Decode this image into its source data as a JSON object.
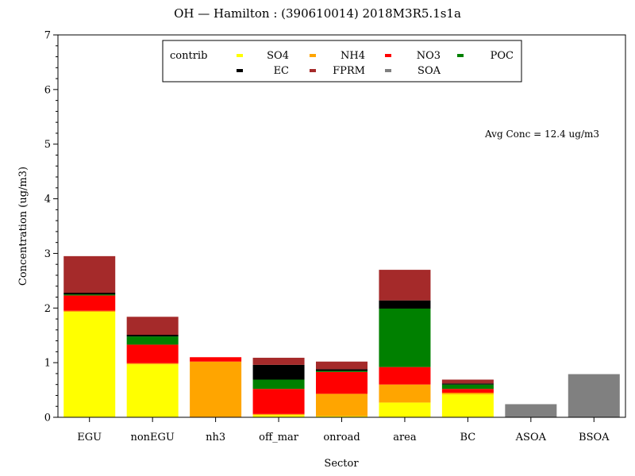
{
  "chart_data": {
    "type": "bar",
    "stacked": true,
    "title": "OH  —  Hamilton : (390610014)  2018M3R5.1s1a",
    "xlabel": "Sector",
    "ylabel": "Concentration (ug/m3)",
    "ylim": [
      0,
      7
    ],
    "yticks": [
      0,
      1,
      2,
      3,
      4,
      5,
      6,
      7
    ],
    "grid": false,
    "legend": {
      "title": "contrib",
      "placement": "top-center"
    },
    "annotation": "Avg Conc  =  12.4 ug/m3",
    "categories": [
      "EGU",
      "nonEGU",
      "nh3",
      "off_mar",
      "onroad",
      "area",
      "BC",
      "ASOA",
      "BSOA"
    ],
    "series": [
      {
        "name": "SO4",
        "color": "#ffff00",
        "values": [
          1.93,
          0.97,
          0.0,
          0.04,
          0.02,
          0.27,
          0.42,
          0.0,
          0.0
        ]
      },
      {
        "name": "NH4",
        "color": "#ffa500",
        "values": [
          0.02,
          0.02,
          1.02,
          0.02,
          0.41,
          0.33,
          0.03,
          0.0,
          0.0
        ]
      },
      {
        "name": "NO3",
        "color": "#ff0000",
        "values": [
          0.28,
          0.34,
          0.08,
          0.46,
          0.4,
          0.32,
          0.07,
          0.0,
          0.0
        ]
      },
      {
        "name": "POC",
        "color": "#008000",
        "values": [
          0.02,
          0.15,
          0.0,
          0.17,
          0.02,
          1.07,
          0.08,
          0.0,
          0.0
        ]
      },
      {
        "name": "EC",
        "color": "#000000",
        "values": [
          0.03,
          0.03,
          0.0,
          0.27,
          0.03,
          0.15,
          0.02,
          0.0,
          0.0
        ]
      },
      {
        "name": "FPRM",
        "color": "#a52a2a",
        "values": [
          0.67,
          0.33,
          0.0,
          0.13,
          0.14,
          0.56,
          0.07,
          0.0,
          0.0
        ]
      },
      {
        "name": "SOA",
        "color": "#808080",
        "values": [
          0.0,
          0.0,
          0.0,
          0.0,
          0.0,
          0.0,
          0.0,
          0.24,
          0.79
        ]
      }
    ]
  }
}
